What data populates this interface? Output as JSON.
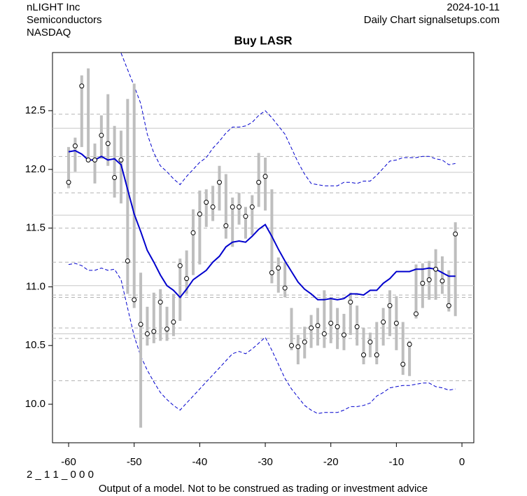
{
  "chart_data": {
    "type": "range",
    "title": "Buy LASR",
    "company": "nLIGHT Inc",
    "sector": "Semiconductors",
    "exchange": "NASDAQ",
    "date": "2024-10-11",
    "source": "Daily Chart signalsetups.com",
    "code": "2 _ 1 1 _ 0 0 0",
    "disclaimer": "Output of a model. Not to be construed as trading or investment advice",
    "xlim": [
      -62.46,
      1.81
    ],
    "ylim": [
      9.672,
      12.995
    ],
    "xticks": [
      -60,
      -50,
      -40,
      -30,
      -20,
      -10,
      0
    ],
    "yticks": [
      {
        "value": 10,
        "label": "10.0"
      },
      10.5,
      {
        "value": 11,
        "label": "11.0"
      },
      11.5,
      {
        "value": 12,
        "label": "12.0"
      },
      12.5
    ],
    "bar_color": "#bebebe",
    "line_color": "#0000cd",
    "hlines_solid": [
      12.35,
      11.975,
      11.61,
      11.01,
      10.6
    ],
    "hlines_dashed": [
      12.47,
      12.11,
      11.8,
      11.5,
      11.21,
      10.93,
      10.91,
      10.65,
      10.56,
      10.2
    ],
    "x": [
      -60,
      -59,
      -58,
      -57,
      -56,
      -55,
      -54,
      -53,
      -52,
      -51,
      -50,
      -49,
      -48,
      -47,
      -46,
      -45,
      -44,
      -43,
      -42,
      -41,
      -40,
      -39,
      -38,
      -37,
      -36,
      -35,
      -34,
      -33,
      -32,
      -31,
      -30,
      -29,
      -28,
      -27,
      -26,
      -25,
      -24,
      -23,
      -22,
      -21,
      -20,
      -19,
      -18,
      -17,
      -16,
      -15,
      -14,
      -13,
      -12,
      -11,
      -10,
      -9,
      -8,
      -7,
      -6,
      -5,
      -4,
      -3,
      -2,
      -1
    ],
    "close": [
      11.89,
      12.2,
      12.71,
      12.08,
      12.08,
      12.29,
      12.22,
      11.93,
      12.08,
      11.22,
      10.89,
      10.68,
      10.6,
      10.62,
      10.87,
      10.64,
      10.7,
      11.18,
      11.07,
      11.46,
      11.62,
      11.72,
      11.68,
      11.89,
      11.52,
      11.68,
      11.68,
      11.6,
      11.68,
      11.89,
      11.94,
      11.12,
      11.16,
      10.99,
      10.5,
      10.49,
      10.53,
      10.65,
      10.67,
      10.6,
      10.69,
      10.66,
      10.59,
      10.87,
      10.66,
      10.42,
      10.53,
      10.42,
      10.7,
      10.84,
      10.69,
      10.34,
      10.51,
      10.77,
      11.03,
      11.06,
      11.15,
      11.05,
      10.84,
      11.45
    ],
    "high": [
      12.19,
      12.27,
      12.8,
      12.86,
      12.22,
      12.46,
      12.64,
      12.37,
      12.33,
      12.6,
      12.73,
      11.12,
      10.83,
      10.95,
      10.98,
      10.83,
      10.94,
      11.24,
      11.31,
      11.66,
      11.82,
      11.83,
      11.86,
      12.03,
      11.96,
      11.76,
      11.8,
      11.68,
      11.78,
      12.14,
      12.1,
      11.83,
      11.25,
      11.21,
      10.82,
      10.59,
      10.66,
      10.76,
      10.82,
      10.97,
      10.91,
      10.82,
      10.77,
      10.95,
      10.84,
      10.65,
      10.61,
      10.7,
      10.82,
      10.97,
      10.92,
      10.7,
      10.54,
      11.19,
      11.2,
      11.22,
      11.32,
      11.26,
      11.14,
      11.55
    ],
    "low": [
      11.84,
      11.98,
      12.19,
      12.07,
      11.88,
      12.09,
      12.03,
      11.76,
      11.71,
      10.94,
      10.82,
      9.8,
      10.5,
      10.52,
      10.54,
      10.54,
      10.58,
      10.71,
      10.94,
      11.1,
      11.19,
      11.51,
      11.56,
      11.65,
      11.41,
      11.34,
      11.53,
      11.41,
      11.44,
      11.68,
      11.65,
      11.03,
      10.95,
      10.91,
      10.46,
      10.34,
      10.39,
      10.48,
      10.5,
      10.48,
      10.52,
      10.47,
      10.46,
      10.59,
      10.5,
      10.34,
      10.4,
      10.34,
      10.5,
      10.58,
      10.46,
      10.25,
      10.24,
      10.73,
      10.82,
      10.89,
      10.89,
      10.94,
      10.79,
      10.75
    ],
    "ma": [
      12.15,
      12.16,
      12.13,
      12.08,
      12.08,
      12.11,
      12.08,
      12.09,
      12.04,
      11.83,
      11.62,
      11.47,
      11.31,
      11.21,
      11.1,
      11.01,
      10.97,
      10.91,
      10.98,
      11.06,
      11.1,
      11.14,
      11.21,
      11.26,
      11.34,
      11.38,
      11.39,
      11.38,
      11.43,
      11.49,
      11.53,
      11.43,
      11.32,
      11.22,
      11.13,
      11.04,
      10.98,
      10.94,
      10.89,
      10.89,
      10.9,
      10.89,
      10.9,
      10.94,
      10.94,
      10.93,
      10.97,
      10.97,
      11.03,
      11.07,
      11.13,
      11.13,
      11.13,
      11.15,
      11.15,
      11.16,
      11.15,
      11.12,
      11.09,
      11.09
    ],
    "upper": [
      null,
      null,
      null,
      null,
      null,
      null,
      null,
      null,
      12.99,
      12.85,
      12.71,
      12.56,
      12.3,
      12.14,
      12.03,
      11.98,
      11.92,
      11.87,
      11.94,
      12.0,
      12.06,
      12.1,
      12.18,
      12.24,
      12.31,
      12.36,
      12.36,
      12.37,
      12.4,
      12.46,
      12.5,
      12.44,
      12.37,
      12.3,
      12.18,
      12.06,
      11.96,
      11.88,
      11.87,
      11.86,
      11.86,
      11.86,
      11.89,
      11.89,
      11.88,
      11.9,
      11.9,
      11.95,
      12.01,
      12.07,
      12.08,
      12.1,
      12.1,
      12.1,
      12.11,
      12.11,
      12.09,
      12.08,
      12.04,
      12.05
    ],
    "lower": [
      11.19,
      11.2,
      11.18,
      11.14,
      11.14,
      11.16,
      11.14,
      11.15,
      11.06,
      10.82,
      10.58,
      10.41,
      10.29,
      10.19,
      10.1,
      10.04,
      9.99,
      9.95,
      10.01,
      10.07,
      10.13,
      10.19,
      10.25,
      10.31,
      10.37,
      10.43,
      10.45,
      10.43,
      10.47,
      10.52,
      10.57,
      10.46,
      10.34,
      10.22,
      10.13,
      10.06,
      9.99,
      9.95,
      9.92,
      9.93,
      9.93,
      9.93,
      9.95,
      9.98,
      9.98,
      9.99,
      10.01,
      10.07,
      10.1,
      10.14,
      10.15,
      10.16,
      10.16,
      10.17,
      10.18,
      10.18,
      10.15,
      10.14,
      10.12,
      10.13
    ]
  }
}
